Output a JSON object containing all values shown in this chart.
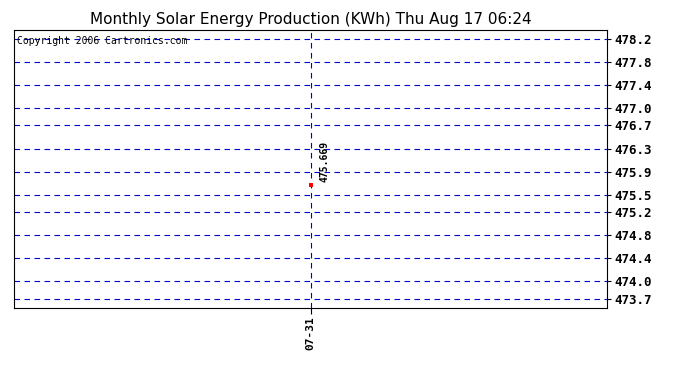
{
  "title": "Monthly Solar Energy Production (KWh) Thu Aug 17 06:24",
  "copyright_text": "Copyright 2006 Cartronics.com",
  "x_value": "07-31",
  "y_value": 475.669,
  "yticks": [
    478.2,
    477.8,
    477.4,
    477.0,
    476.7,
    476.3,
    475.9,
    475.5,
    475.2,
    474.8,
    474.4,
    474.0,
    473.7
  ],
  "ylim": [
    473.55,
    478.35
  ],
  "xlim": [
    -0.5,
    1.5
  ],
  "data_point_x": 0.5,
  "annotation": "475.669",
  "bg_color": "#ffffff",
  "grid_color": "#0000cc",
  "vline_color": "#0000cc",
  "marker_color": "#ff0000",
  "title_fontsize": 11,
  "copyright_fontsize": 7,
  "annotation_fontsize": 7,
  "ytick_fontsize": 9,
  "xtick_fontsize": 8
}
